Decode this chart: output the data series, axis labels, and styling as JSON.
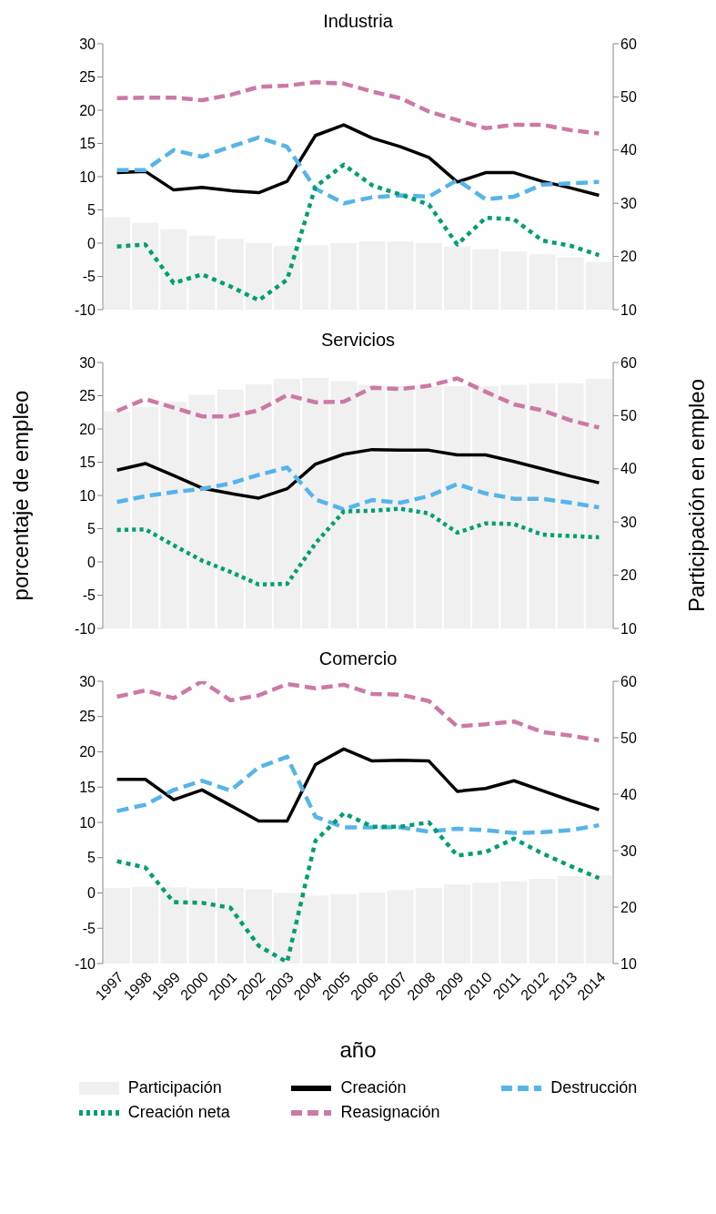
{
  "chart_data": [
    {
      "type": "line",
      "title": "Industria",
      "categories": [
        "1997",
        "1998",
        "1999",
        "2000",
        "2001",
        "2002",
        "2003",
        "2004",
        "2005",
        "2006",
        "2007",
        "2008",
        "2009",
        "2010",
        "2011",
        "2012",
        "2013",
        "2014"
      ],
      "ylim": [
        -10,
        30
      ],
      "yticks": [
        -10,
        -5,
        0,
        5,
        10,
        15,
        20,
        25,
        30
      ],
      "y2lim": [
        10,
        60
      ],
      "y2ticks": [
        10,
        20,
        30,
        40,
        50,
        60
      ],
      "tick_labels": "y",
      "grid": false,
      "legend": false,
      "series": [
        {
          "type": "bar",
          "axis": "y2",
          "color": "#f0f0f0",
          "values": [
            27.4,
            26.3,
            25.1,
            23.9,
            23.3,
            22.5,
            22.0,
            22.1,
            22.5,
            22.8,
            22.8,
            22.5,
            21.9,
            21.4,
            20.9,
            20.4,
            19.8,
            19.0
          ]
        },
        {
          "color": "#000000",
          "line_style": "solid",
          "values": [
            10.6,
            10.8,
            8.0,
            8.4,
            7.9,
            7.6,
            9.3,
            16.2,
            17.8,
            15.8,
            14.5,
            12.9,
            9.2,
            10.6,
            10.6,
            9.3,
            8.3,
            7.2
          ]
        },
        {
          "color": "#56b4e9",
          "line_style": "dashed",
          "values": [
            11.0,
            11.0,
            14.0,
            13.0,
            14.5,
            15.9,
            14.5,
            8.2,
            6.0,
            6.9,
            7.2,
            7.0,
            9.5,
            6.6,
            7.0,
            8.8,
            9.0,
            9.2
          ]
        },
        {
          "color": "#009e73",
          "line_style": "dotted",
          "values": [
            -0.5,
            -0.2,
            -6.0,
            -4.7,
            -6.5,
            -8.6,
            -5.5,
            8.5,
            11.8,
            8.7,
            7.3,
            5.8,
            -0.2,
            3.8,
            3.6,
            0.4,
            -0.4,
            -1.8
          ]
        },
        {
          "color": "#cc79a7",
          "line_style": "dashed",
          "values": [
            21.8,
            21.9,
            21.9,
            21.5,
            22.3,
            23.5,
            23.7,
            24.2,
            24.0,
            22.8,
            21.8,
            19.8,
            18.5,
            17.3,
            17.8,
            17.8,
            17.0,
            16.5
          ]
        }
      ]
    },
    {
      "type": "line",
      "title": "Servicios",
      "ylabel": "porcentaje de empleo",
      "y2label": "Participación en empleo",
      "categories": [
        "1997",
        "1998",
        "1999",
        "2000",
        "2001",
        "2002",
        "2003",
        "2004",
        "2005",
        "2006",
        "2007",
        "2008",
        "2009",
        "2010",
        "2011",
        "2012",
        "2013",
        "2014"
      ],
      "ylim": [
        -10,
        30
      ],
      "yticks": [
        -10,
        -5,
        0,
        5,
        10,
        15,
        20,
        25,
        30
      ],
      "y2lim": [
        10,
        60
      ],
      "y2ticks": [
        10,
        20,
        30,
        40,
        50,
        60
      ],
      "tick_labels": "y",
      "grid": false,
      "legend": false,
      "series": [
        {
          "type": "bar",
          "axis": "y2",
          "color": "#f0f0f0",
          "values": [
            50.8,
            51.6,
            52.6,
            53.9,
            54.9,
            55.9,
            56.9,
            57.1,
            56.5,
            55.8,
            55.6,
            55.6,
            55.5,
            55.5,
            55.8,
            56.0,
            56.1,
            56.9
          ]
        },
        {
          "color": "#000000",
          "line_style": "solid",
          "values": [
            13.8,
            14.8,
            13.0,
            11.1,
            10.3,
            9.6,
            11.0,
            14.7,
            16.2,
            16.9,
            16.8,
            16.8,
            16.1,
            16.1,
            15.1,
            14.0,
            12.9,
            11.9
          ]
        },
        {
          "color": "#56b4e9",
          "line_style": "dashed",
          "values": [
            9.0,
            9.9,
            10.5,
            11.0,
            11.8,
            13.1,
            14.2,
            9.4,
            7.9,
            9.3,
            8.9,
            9.9,
            11.7,
            10.3,
            9.5,
            9.5,
            8.9,
            8.2
          ]
        },
        {
          "color": "#009e73",
          "line_style": "dotted",
          "values": [
            4.8,
            4.9,
            2.5,
            0.2,
            -1.5,
            -3.4,
            -3.3,
            2.8,
            7.6,
            7.7,
            8.0,
            7.3,
            4.4,
            5.8,
            5.7,
            4.1,
            3.9,
            3.7
          ]
        },
        {
          "color": "#cc79a7",
          "line_style": "dashed",
          "values": [
            22.7,
            24.5,
            23.2,
            21.9,
            21.9,
            22.8,
            25.1,
            24.0,
            24.1,
            26.2,
            26.0,
            26.5,
            27.6,
            25.6,
            23.7,
            22.8,
            21.3,
            20.2
          ]
        }
      ]
    },
    {
      "type": "line",
      "title": "Comercio",
      "xlabel": "año",
      "categories": [
        "1997",
        "1998",
        "1999",
        "2000",
        "2001",
        "2002",
        "2003",
        "2004",
        "2005",
        "2006",
        "2007",
        "2008",
        "2009",
        "2010",
        "2011",
        "2012",
        "2013",
        "2014"
      ],
      "ylim": [
        -10,
        30
      ],
      "yticks": [
        -10,
        -5,
        0,
        5,
        10,
        15,
        20,
        25,
        30
      ],
      "y2lim": [
        10,
        60
      ],
      "y2ticks": [
        10,
        20,
        30,
        40,
        50,
        60
      ],
      "grid": false,
      "legend": "bottom",
      "series": [
        {
          "name": "Participación",
          "type": "bar",
          "axis": "y2",
          "color": "#f0f0f0",
          "values": [
            23.4,
            23.6,
            23.5,
            23.3,
            23.4,
            23.1,
            22.5,
            22.0,
            22.3,
            22.6,
            23.0,
            23.4,
            24.0,
            24.3,
            24.5,
            25.0,
            25.5,
            25.6
          ]
        },
        {
          "name": "Creación",
          "color": "#000000",
          "line_style": "solid",
          "values": [
            16.1,
            16.1,
            13.2,
            14.6,
            12.4,
            10.2,
            10.2,
            18.2,
            20.4,
            18.7,
            18.8,
            18.7,
            14.4,
            14.8,
            15.9,
            14.5,
            13.1,
            11.8
          ]
        },
        {
          "name": "Destrucción",
          "color": "#56b4e9",
          "line_style": "dashed",
          "values": [
            11.6,
            12.5,
            14.6,
            15.9,
            14.5,
            17.8,
            19.3,
            10.8,
            9.3,
            9.3,
            9.3,
            8.7,
            9.1,
            8.9,
            8.5,
            8.6,
            8.9,
            9.6
          ]
        },
        {
          "name": "Creación neta",
          "color": "#009e73",
          "line_style": "dotted",
          "values": [
            4.5,
            3.6,
            -1.3,
            -1.4,
            -2.1,
            -7.5,
            -9.8,
            7.4,
            11.3,
            9.4,
            9.4,
            10.0,
            5.3,
            5.8,
            7.7,
            5.6,
            3.8,
            2.1
          ]
        },
        {
          "name": "Reasignación",
          "color": "#cc79a7",
          "line_style": "dashed",
          "values": [
            27.8,
            28.7,
            27.6,
            30.0,
            27.3,
            28.0,
            29.6,
            29.0,
            29.5,
            28.2,
            28.1,
            27.2,
            23.6,
            23.9,
            24.3,
            22.8,
            22.3,
            21.6
          ]
        }
      ]
    }
  ]
}
